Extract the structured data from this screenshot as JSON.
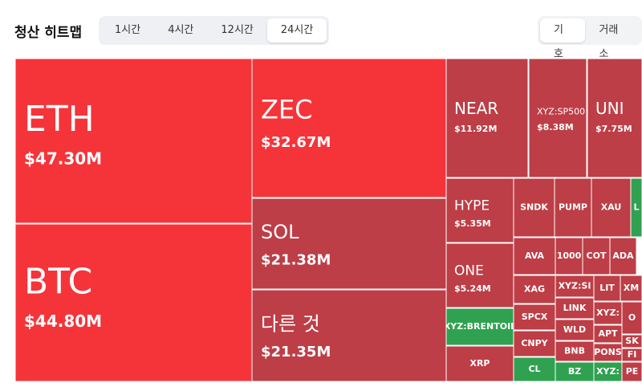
{
  "header": {
    "title": "청산 히트맵",
    "time_tabs": [
      "1시간",
      "4시간",
      "12시간",
      "24시간"
    ],
    "active_time_tab": 3,
    "group_tabs": [
      "기호",
      "거래소"
    ],
    "active_group_tab": 0
  },
  "treemap": {
    "cells": [
      {
        "label": "ETH",
        "value_label": "$47.30M"
      },
      {
        "label": "BTC",
        "value_label": "$44.80M"
      },
      {
        "label": "ZEC",
        "value_label": "$32.67M"
      },
      {
        "label": "SOL",
        "value_label": "$21.38M"
      },
      {
        "label": "다른 것",
        "value_label": "$21.35M"
      },
      {
        "label": "NEAR",
        "value_label": "$11.92M"
      },
      {
        "label": "XYZ:SP500",
        "value_label": "$8.38M"
      },
      {
        "label": "UNI",
        "value_label": "$7.75M"
      },
      {
        "label": "HYPE",
        "value_label": "$5.35M"
      },
      {
        "label": "ONE",
        "value_label": "$5.24M"
      },
      {
        "label": "XYZ:BRENTOIL"
      },
      {
        "label": "XRP"
      },
      {
        "label": "SNDK"
      },
      {
        "label": "PUMP"
      },
      {
        "label": "XAU"
      },
      {
        "label": "L"
      },
      {
        "label": "AVA"
      },
      {
        "label": "1000"
      },
      {
        "label": "COT"
      },
      {
        "label": "ADA"
      },
      {
        "label": "XAG"
      },
      {
        "label": "XYZ:SI"
      },
      {
        "label": "LIT"
      },
      {
        "label": "XM"
      },
      {
        "label": "LINK"
      },
      {
        "label": "XYZ:"
      },
      {
        "label": "O"
      },
      {
        "label": "SPCX"
      },
      {
        "label": "WLD"
      },
      {
        "label": "APT"
      },
      {
        "label": "CNPY"
      },
      {
        "label": "BNB"
      },
      {
        "label": "PONS"
      },
      {
        "label": "SK"
      },
      {
        "label": "FI"
      },
      {
        "label": "CL"
      },
      {
        "label": "BZ"
      },
      {
        "label": "XYZ:"
      },
      {
        "label": "PE"
      }
    ]
  }
}
